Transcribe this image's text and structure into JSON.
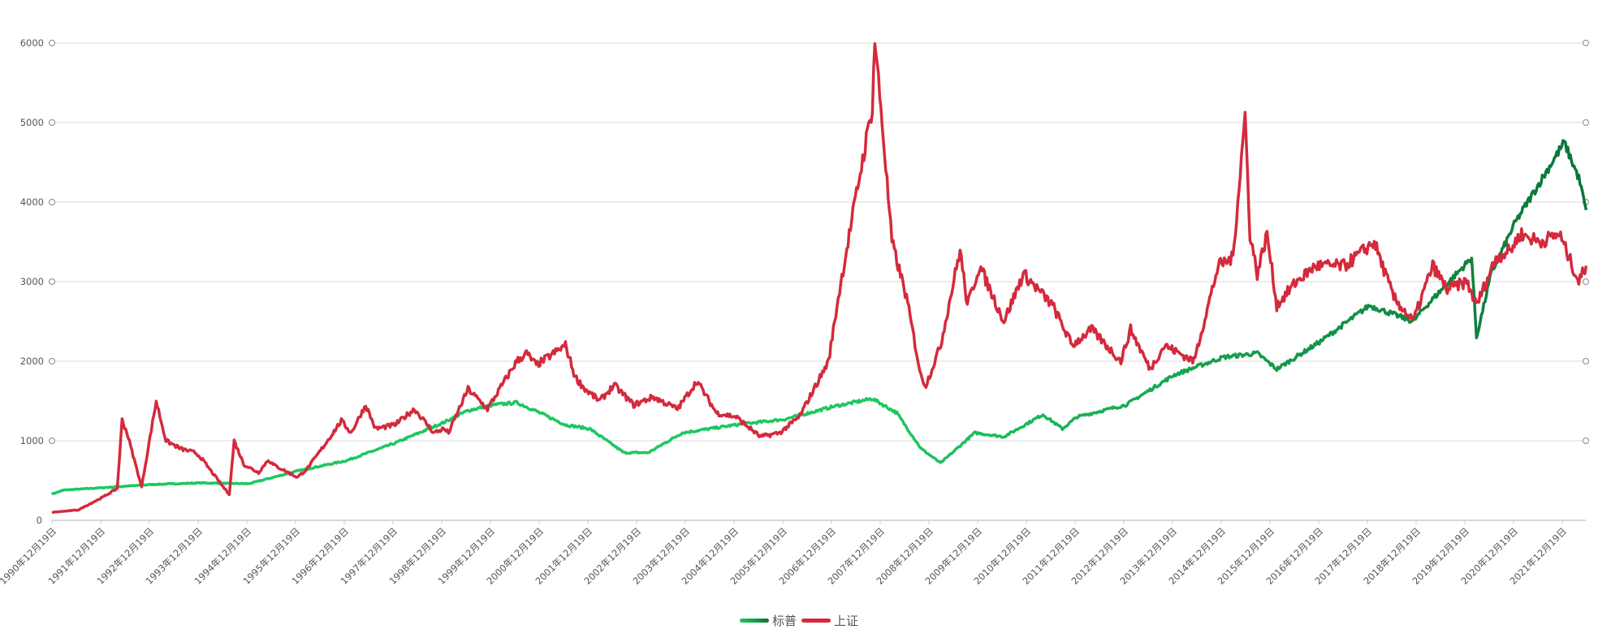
{
  "chart_data": {
    "type": "line",
    "title": "",
    "xlabel": "",
    "ylabel": "",
    "ylim": [
      0,
      6000
    ],
    "yticks": [
      "0",
      "1000",
      "2000",
      "3000",
      "4000",
      "5000",
      "6000"
    ],
    "xticks": [
      "1990年12月19日",
      "1991年12月19日",
      "1992年12月19日",
      "1993年12月19日",
      "1994年12月19日",
      "1995年12月19日",
      "1996年12月19日",
      "1997年12月19日",
      "1998年12月19日",
      "1999年12月19日",
      "2000年12月19日",
      "2001年12月19日",
      "2002年12月19日",
      "2003年12月19日",
      "2004年12月19日",
      "2005年12月19日",
      "2006年12月19日",
      "2007年12月19日",
      "2008年12月19日",
      "2009年12月19日",
      "2010年12月19日",
      "2011年12月19日",
      "2012年12月19日",
      "2013年12月19日",
      "2014年12月19日",
      "2015年12月19日",
      "2016年12月19日",
      "2017年12月19日",
      "2018年12月19日",
      "2019年12月19日",
      "2020年12月19日",
      "2021年12月19日"
    ],
    "xlim_years": [
      1990.96,
      2022.45
    ],
    "grid": true,
    "legend_position": "bottom",
    "series": [
      {
        "name": "标普",
        "color": "#1ec760",
        "color_end": "#0a7438",
        "points": [
          [
            1990.96,
            330
          ],
          [
            1991.2,
            380
          ],
          [
            1992,
            410
          ],
          [
            1993,
            450
          ],
          [
            1994,
            470
          ],
          [
            1995,
            460
          ],
          [
            1996,
            620
          ],
          [
            1997,
            750
          ],
          [
            1998,
            970
          ],
          [
            1999,
            1230
          ],
          [
            1999.5,
            1380
          ],
          [
            2000,
            1450
          ],
          [
            2000.5,
            1480
          ],
          [
            2000.8,
            1400
          ],
          [
            2001.5,
            1200
          ],
          [
            2002,
            1150
          ],
          [
            2002.7,
            850
          ],
          [
            2003.2,
            850
          ],
          [
            2003.9,
            1100
          ],
          [
            2005,
            1200
          ],
          [
            2006,
            1270
          ],
          [
            2007,
            1430
          ],
          [
            2007.8,
            1530
          ],
          [
            2008.3,
            1350
          ],
          [
            2008.8,
            900
          ],
          [
            2009.2,
            720
          ],
          [
            2009.9,
            1100
          ],
          [
            2010.5,
            1050
          ],
          [
            2011.3,
            1330
          ],
          [
            2011.7,
            1150
          ],
          [
            2012,
            1300
          ],
          [
            2013,
            1450
          ],
          [
            2014,
            1830
          ],
          [
            2015,
            2050
          ],
          [
            2015.7,
            2100
          ],
          [
            2016.1,
            1900
          ],
          [
            2017,
            2250
          ],
          [
            2018,
            2700
          ],
          [
            2018.9,
            2500
          ],
          [
            2019.1,
            2650
          ],
          [
            2020.1,
            3300
          ],
          [
            2020.2,
            2300
          ],
          [
            2020.5,
            3100
          ],
          [
            2021,
            3750
          ],
          [
            2022,
            4750
          ],
          [
            2022.3,
            4300
          ],
          [
            2022.45,
            3900
          ]
        ]
      },
      {
        "name": "上证",
        "color": "#d42a3c",
        "points": [
          [
            1990.96,
            100
          ],
          [
            1991.5,
            130
          ],
          [
            1992,
            290
          ],
          [
            1992.3,
            400
          ],
          [
            1992.4,
            1260
          ],
          [
            1992.5,
            1100
          ],
          [
            1992.8,
            420
          ],
          [
            1993.1,
            1500
          ],
          [
            1993.3,
            1000
          ],
          [
            1993.6,
            900
          ],
          [
            1993.9,
            850
          ],
          [
            1994,
            800
          ],
          [
            1994.5,
            400
          ],
          [
            1994.6,
            330
          ],
          [
            1994.7,
            1000
          ],
          [
            1994.9,
            700
          ],
          [
            1995.2,
            600
          ],
          [
            1995.4,
            760
          ],
          [
            1995.5,
            700
          ],
          [
            1996,
            540
          ],
          [
            1996.2,
            650
          ],
          [
            1996.5,
            900
          ],
          [
            1996.9,
            1250
          ],
          [
            1997.1,
            1100
          ],
          [
            1997.4,
            1450
          ],
          [
            1997.6,
            1150
          ],
          [
            1998,
            1200
          ],
          [
            1998.4,
            1400
          ],
          [
            1998.6,
            1250
          ],
          [
            1998.8,
            1100
          ],
          [
            1999,
            1150
          ],
          [
            1999.1,
            1100
          ],
          [
            1999.5,
            1650
          ],
          [
            1999.9,
            1400
          ],
          [
            2000.2,
            1700
          ],
          [
            2000.5,
            2000
          ],
          [
            2000.7,
            2100
          ],
          [
            2000.9,
            1950
          ],
          [
            2001.5,
            2200
          ],
          [
            2001.7,
            1800
          ],
          [
            2001.9,
            1650
          ],
          [
            2002.2,
            1500
          ],
          [
            2002.5,
            1700
          ],
          [
            2002.9,
            1450
          ],
          [
            2003.3,
            1550
          ],
          [
            2003.8,
            1400
          ],
          [
            2004.2,
            1750
          ],
          [
            2004.6,
            1350
          ],
          [
            2005,
            1300
          ],
          [
            2005.5,
            1050
          ],
          [
            2005.9,
            1100
          ],
          [
            2006.3,
            1300
          ],
          [
            2006.9,
            2000
          ],
          [
            2007.1,
            2800
          ],
          [
            2007.3,
            3500
          ],
          [
            2007.5,
            4200
          ],
          [
            2007.8,
            5200
          ],
          [
            2007.85,
            6050
          ],
          [
            2008,
            5000
          ],
          [
            2008.2,
            3500
          ],
          [
            2008.5,
            2800
          ],
          [
            2008.8,
            1800
          ],
          [
            2008.9,
            1700
          ],
          [
            2009.2,
            2200
          ],
          [
            2009.6,
            3400
          ],
          [
            2009.75,
            2700
          ],
          [
            2010,
            3200
          ],
          [
            2010.5,
            2500
          ],
          [
            2010.9,
            3100
          ],
          [
            2011.2,
            2900
          ],
          [
            2011.5,
            2700
          ],
          [
            2011.9,
            2200
          ],
          [
            2012.3,
            2400
          ],
          [
            2012.9,
            2000
          ],
          [
            2013.1,
            2400
          ],
          [
            2013.5,
            1900
          ],
          [
            2013.8,
            2200
          ],
          [
            2014.4,
            2000
          ],
          [
            2014.9,
            3200
          ],
          [
            2015.2,
            3300
          ],
          [
            2015.45,
            5100
          ],
          [
            2015.55,
            3600
          ],
          [
            2015.7,
            3100
          ],
          [
            2015.9,
            3600
          ],
          [
            2016.1,
            2700
          ],
          [
            2016.5,
            3000
          ],
          [
            2016.9,
            3200
          ],
          [
            2017.5,
            3200
          ],
          [
            2017.9,
            3400
          ],
          [
            2018.1,
            3500
          ],
          [
            2018.5,
            2800
          ],
          [
            2018.9,
            2500
          ],
          [
            2019.3,
            3200
          ],
          [
            2019.6,
            2900
          ],
          [
            2020,
            3000
          ],
          [
            2020.2,
            2700
          ],
          [
            2020.6,
            3300
          ],
          [
            2020.9,
            3400
          ],
          [
            2021.1,
            3600
          ],
          [
            2021.5,
            3500
          ],
          [
            2021.9,
            3600
          ],
          [
            2022.3,
            3000
          ],
          [
            2022.45,
            3200
          ]
        ]
      }
    ]
  }
}
